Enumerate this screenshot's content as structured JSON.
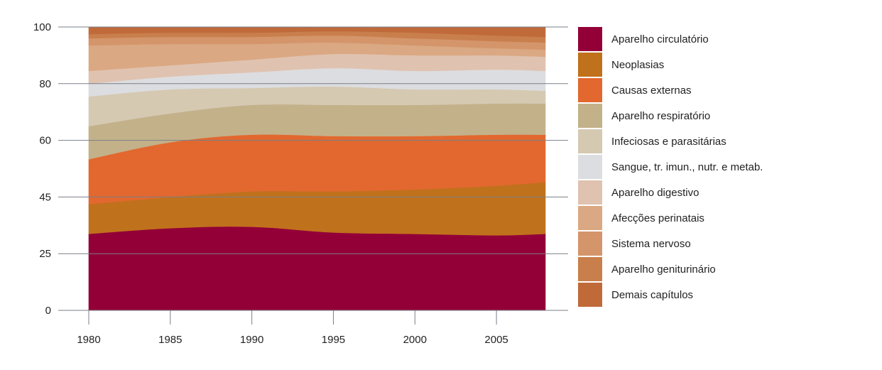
{
  "chart_data": {
    "type": "area",
    "stacked": true,
    "x": [
      1980,
      1985,
      1990,
      1995,
      2000,
      2005,
      2008
    ],
    "x_ticks": [
      1980,
      1985,
      1990,
      1995,
      2000,
      2005
    ],
    "y_ticks": [
      "0",
      "25",
      "45",
      "60",
      "80",
      "100"
    ],
    "ylim": [
      0,
      100
    ],
    "grid": true,
    "legend_position": "right",
    "series": [
      {
        "name": "Aparelho circulatório",
        "color": "#930038",
        "values": [
          32,
          34,
          34.5,
          32.5,
          32,
          31.5,
          32
        ]
      },
      {
        "name": "Neoplasias",
        "color": "#c0711c",
        "values": [
          10.5,
          11,
          12,
          14,
          15,
          16.5,
          17
        ]
      },
      {
        "name": "Causas externas",
        "color": "#e2682f",
        "values": [
          12.5,
          14.5,
          15.5,
          15,
          14.5,
          14,
          13
        ]
      },
      {
        "name": "Aparelho respiratório",
        "color": "#c3b18a",
        "values": [
          10,
          10,
          10.5,
          11,
          11,
          11,
          11
        ]
      },
      {
        "name": "Infeciosas e parasitárias",
        "color": "#d5c9b2",
        "values": [
          10.5,
          8.5,
          6,
          6.5,
          5.5,
          5,
          4.5
        ]
      },
      {
        "name": "Sangue, tr. imun., nutr. e metab.",
        "color": "#dcdde0",
        "values": [
          4.5,
          4.5,
          5.5,
          6.5,
          6.5,
          7,
          7
        ]
      },
      {
        "name": "Aparelho digestivo",
        "color": "#e0c2b0",
        "values": [
          4.5,
          4,
          4.5,
          5,
          5.5,
          5,
          5
        ]
      },
      {
        "name": "Afecções perinatais",
        "color": "#daa882",
        "values": [
          9,
          7.5,
          5.5,
          4,
          3.5,
          2.5,
          2.5
        ]
      },
      {
        "name": "Sistema nervoso",
        "color": "#d4956b",
        "values": [
          2.5,
          2.5,
          2.5,
          2.5,
          2.5,
          2.5,
          2.5
        ]
      },
      {
        "name": "Aparelho geniturinário",
        "color": "#c97f4c",
        "values": [
          1.5,
          1.5,
          1.5,
          1.5,
          2,
          2,
          2
        ]
      },
      {
        "name": "Demais capítulos",
        "color": "#c06a3a",
        "values": [
          2.5,
          2,
          2,
          1.5,
          2,
          3,
          3.5
        ]
      }
    ]
  }
}
